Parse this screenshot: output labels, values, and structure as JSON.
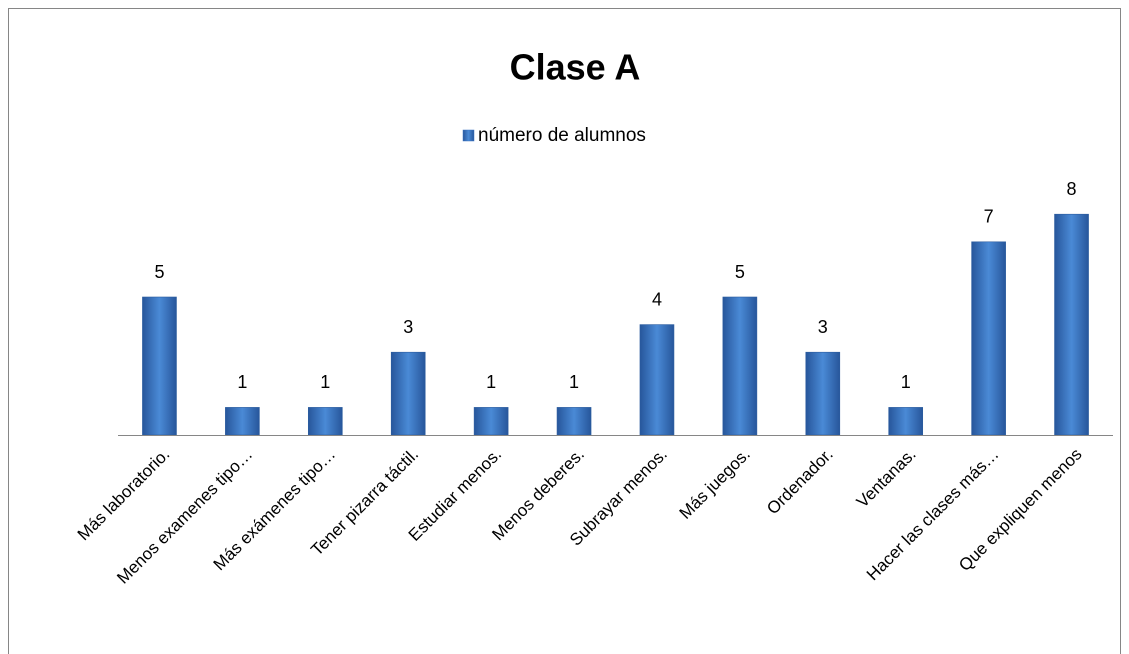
{
  "chart_data": {
    "type": "bar",
    "title": "Clase A",
    "categories": [
      "Más laboratorio.",
      "Menos examenes tipo…",
      "Más exámenes tipo…",
      "Tener pizarra táctil.",
      "Estudiar menos.",
      "Menos deberes.",
      "Subrayar menos.",
      "Más juegos.",
      "Ordenador.",
      "Ventanas.",
      "Hacer las clases más…",
      "Que expliquen menos"
    ],
    "series": [
      {
        "name": "número de alumnos",
        "color": "#3a75c4",
        "values": [
          5,
          1,
          1,
          3,
          1,
          1,
          4,
          5,
          3,
          1,
          7,
          8
        ]
      }
    ],
    "legend": "top"
  }
}
